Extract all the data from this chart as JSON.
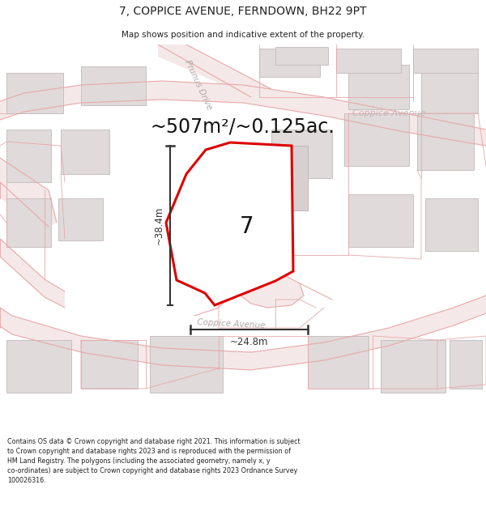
{
  "title": "7, COPPICE AVENUE, FERNDOWN, BH22 9PT",
  "subtitle": "Map shows position and indicative extent of the property.",
  "area_text": "~507m²/~0.125ac.",
  "label_7": "7",
  "dim_height": "~38.4m",
  "dim_width": "~24.8m",
  "footer": "Contains OS data © Crown copyright and database right 2021. This information is subject to Crown copyright and database rights 2023 and is reproduced with the permission of HM Land Registry. The polygons (including the associated geometry, namely x, y co-ordinates) are subject to Crown copyright and database rights 2023 Ordnance Survey 100026316.",
  "bg_white": "#ffffff",
  "map_bg": "#ffffff",
  "road_fill": "#f5e8e8",
  "road_line": "#e8a8a8",
  "building_fill": "#e0dada",
  "building_edge": "#c8c0c0",
  "plot_red": "#dd0000",
  "plot_fill": "#ffffff",
  "dim_black": "#333333",
  "street_gray": "#b0a8a8",
  "title_black": "#222222",
  "footer_black": "#222222",
  "header_bg": "#ffffff",
  "footer_bg": "#ffffff"
}
